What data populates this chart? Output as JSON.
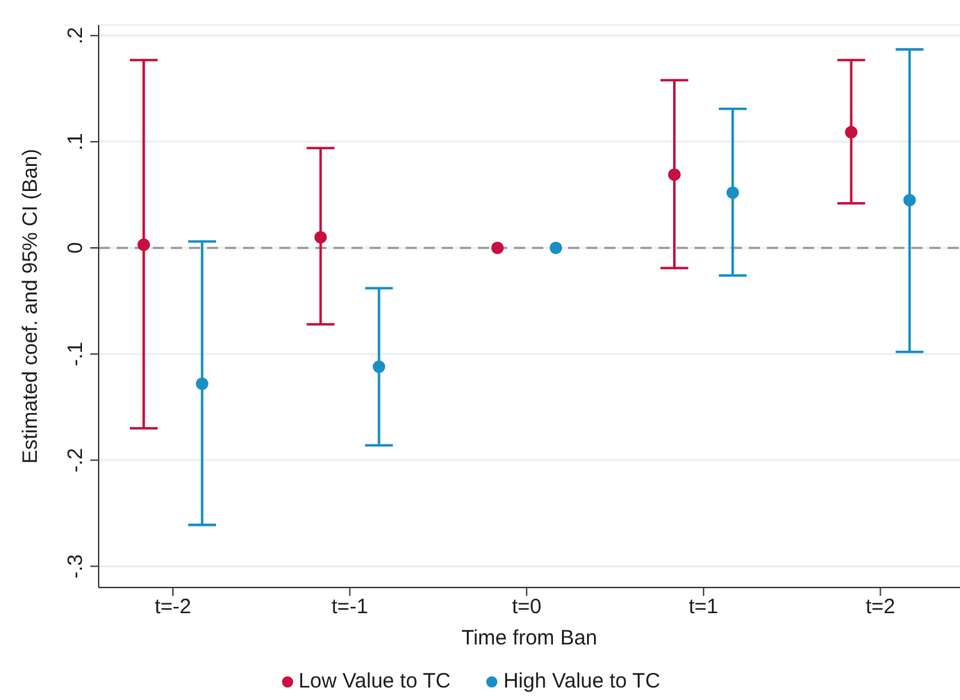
{
  "chart_data": {
    "type": "scatter",
    "xlabel": "Time from Ban",
    "ylabel": "Estimated coef. and 95% CI (Ban)",
    "categories": [
      "t=-2",
      "t=-1",
      "t=0",
      "t=1",
      "t=2"
    ],
    "series": [
      {
        "name": "Low Value to TC",
        "color": "#c8103e",
        "values": [
          0.003,
          0.01,
          0,
          0.069,
          0.109
        ],
        "errors": [
          [
            -0.17,
            0.177
          ],
          [
            -0.072,
            0.094
          ],
          null,
          [
            -0.019,
            0.158
          ],
          [
            0.042,
            0.177
          ]
        ]
      },
      {
        "name": "High Value to TC",
        "color": "#1a8fc5",
        "values": [
          -0.128,
          -0.112,
          0,
          0.052,
          0.045
        ],
        "errors": [
          [
            -0.261,
            0.006
          ],
          [
            -0.186,
            -0.038
          ],
          null,
          [
            -0.026,
            0.131
          ],
          [
            -0.098,
            0.187
          ]
        ]
      }
    ],
    "ylim": [
      -0.32,
      0.21
    ],
    "yticks": [
      {
        "value": -0.3,
        "label": "-.3"
      },
      {
        "value": -0.2,
        "label": "-.2"
      },
      {
        "value": -0.1,
        "label": "-.1"
      },
      0,
      {
        "value": 0.1,
        "label": ".1"
      },
      {
        "value": 0.2,
        "label": ".2"
      }
    ],
    "ref_lines": [
      {
        "axis": "y",
        "value": 0,
        "color": "#999999",
        "line_style": "dashed"
      }
    ],
    "grid": "y",
    "legend": "bottom",
    "marker": "circle"
  }
}
